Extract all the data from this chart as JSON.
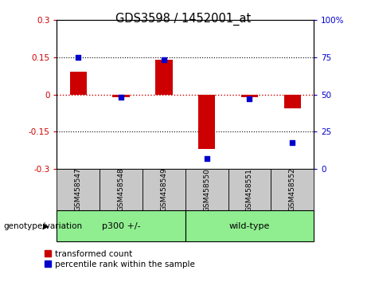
{
  "title": "GDS3598 / 1452001_at",
  "samples": [
    "GSM458547",
    "GSM458548",
    "GSM458549",
    "GSM458550",
    "GSM458551",
    "GSM458552"
  ],
  "transformed_count": [
    0.09,
    -0.01,
    0.14,
    -0.22,
    -0.01,
    -0.055
  ],
  "percentile_rank_display": [
    75,
    48,
    73,
    7,
    47,
    18
  ],
  "group_labels": [
    "p300 +/-",
    "wild-type"
  ],
  "group_colors": [
    "#90EE90",
    "#90EE90"
  ],
  "group_ranges": [
    [
      0,
      3
    ],
    [
      3,
      6
    ]
  ],
  "ylim": [
    -0.3,
    0.3
  ],
  "y2lim": [
    0,
    100
  ],
  "yticks": [
    -0.3,
    -0.15,
    0.0,
    0.15,
    0.3
  ],
  "ytick_labels": [
    "-0.3",
    "-0.15",
    "0",
    "0.15",
    "0.3"
  ],
  "y2ticks": [
    0,
    25,
    50,
    75,
    100
  ],
  "y2tick_labels": [
    "0",
    "25",
    "50",
    "75",
    "100%"
  ],
  "hlines_dotted": [
    0.15,
    -0.15
  ],
  "bar_color": "#cc0000",
  "dot_color": "#0000cc",
  "zero_line_color": "#cc0000",
  "bar_width": 0.4,
  "legend_red": "transformed count",
  "legend_blue": "percentile rank within the sample",
  "xlabel_label": "genotype/variation",
  "tick_label_area_color": "#c8c8c8",
  "group_area_color": "#90EE90"
}
